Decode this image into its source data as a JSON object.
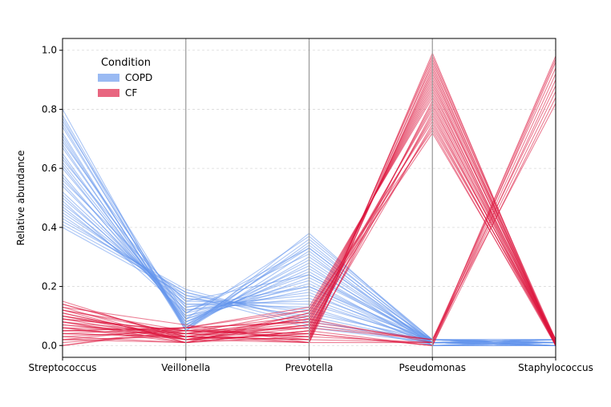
{
  "chart_data": {
    "type": "parallel_coordinates",
    "axes": [
      "Streptococcus",
      "Veillonella",
      "Prevotella",
      "Pseudomonas",
      "Staphylococcus"
    ],
    "ylabel": "Relative abundance",
    "ylim": [
      -0.04,
      1.04
    ],
    "yticks": [
      "0.0",
      "0.2",
      "0.4",
      "0.6",
      "0.8",
      "1.0"
    ],
    "grid": "horizontal dashed",
    "legend": {
      "title": "Condition",
      "position": "top-left",
      "entries": [
        {
          "label": "COPD",
          "color": "#6495ED"
        },
        {
          "label": "CF",
          "color": "#DC143C"
        }
      ]
    },
    "series": [
      {
        "name": "COPD",
        "color": "#6495ED",
        "lines": [
          [
            0.8,
            0.05,
            0.38,
            0.01,
            0.0
          ],
          [
            0.78,
            0.06,
            0.36,
            0.02,
            0.01
          ],
          [
            0.77,
            0.05,
            0.35,
            0.01,
            0.0
          ],
          [
            0.75,
            0.06,
            0.34,
            0.02,
            0.02
          ],
          [
            0.74,
            0.07,
            0.33,
            0.01,
            0.0
          ],
          [
            0.72,
            0.05,
            0.32,
            0.0,
            0.01
          ],
          [
            0.71,
            0.06,
            0.3,
            0.02,
            0.0
          ],
          [
            0.7,
            0.07,
            0.29,
            0.01,
            0.01
          ],
          [
            0.68,
            0.06,
            0.28,
            0.01,
            0.02
          ],
          [
            0.67,
            0.08,
            0.27,
            0.0,
            0.0
          ],
          [
            0.65,
            0.07,
            0.26,
            0.02,
            0.01
          ],
          [
            0.64,
            0.08,
            0.25,
            0.01,
            0.0
          ],
          [
            0.62,
            0.09,
            0.24,
            0.01,
            0.02
          ],
          [
            0.61,
            0.08,
            0.23,
            0.02,
            0.0
          ],
          [
            0.6,
            0.1,
            0.22,
            0.0,
            0.01
          ],
          [
            0.58,
            0.09,
            0.21,
            0.01,
            0.0
          ],
          [
            0.57,
            0.11,
            0.2,
            0.02,
            0.02
          ],
          [
            0.55,
            0.1,
            0.19,
            0.01,
            0.01
          ],
          [
            0.54,
            0.12,
            0.18,
            0.0,
            0.0
          ],
          [
            0.52,
            0.13,
            0.17,
            0.02,
            0.01
          ],
          [
            0.51,
            0.12,
            0.16,
            0.01,
            0.02
          ],
          [
            0.5,
            0.14,
            0.15,
            0.01,
            0.0
          ],
          [
            0.48,
            0.15,
            0.14,
            0.02,
            0.01
          ],
          [
            0.47,
            0.14,
            0.13,
            0.0,
            0.0
          ],
          [
            0.46,
            0.16,
            0.12,
            0.01,
            0.02
          ],
          [
            0.45,
            0.17,
            0.11,
            0.02,
            0.01
          ],
          [
            0.44,
            0.16,
            0.1,
            0.01,
            0.0
          ],
          [
            0.43,
            0.18,
            0.09,
            0.0,
            0.01
          ],
          [
            0.42,
            0.19,
            0.08,
            0.02,
            0.02
          ],
          [
            0.41,
            0.18,
            0.07,
            0.01,
            0.0
          ],
          [
            0.4,
            0.17,
            0.06,
            0.01,
            0.01
          ],
          [
            0.76,
            0.09,
            0.37,
            0.02,
            0.0
          ],
          [
            0.69,
            0.11,
            0.31,
            0.0,
            0.02
          ],
          [
            0.63,
            0.13,
            0.2,
            0.01,
            0.01
          ],
          [
            0.56,
            0.15,
            0.24,
            0.02,
            0.0
          ],
          [
            0.49,
            0.11,
            0.33,
            0.01,
            0.02
          ]
        ]
      },
      {
        "name": "CF",
        "color": "#DC143C",
        "lines": [
          [
            0.15,
            0.02,
            0.01,
            0.99,
            0.0
          ],
          [
            0.14,
            0.03,
            0.02,
            0.98,
            0.01
          ],
          [
            0.13,
            0.01,
            0.03,
            0.97,
            0.0
          ],
          [
            0.12,
            0.04,
            0.01,
            0.96,
            0.02
          ],
          [
            0.11,
            0.02,
            0.04,
            0.95,
            0.0
          ],
          [
            0.1,
            0.03,
            0.02,
            0.94,
            0.01
          ],
          [
            0.09,
            0.05,
            0.03,
            0.93,
            0.0
          ],
          [
            0.08,
            0.01,
            0.05,
            0.92,
            0.02
          ],
          [
            0.07,
            0.04,
            0.06,
            0.91,
            0.01
          ],
          [
            0.06,
            0.02,
            0.07,
            0.9,
            0.0
          ],
          [
            0.05,
            0.06,
            0.08,
            0.89,
            0.01
          ],
          [
            0.04,
            0.03,
            0.09,
            0.88,
            0.02
          ],
          [
            0.03,
            0.05,
            0.1,
            0.87,
            0.0
          ],
          [
            0.02,
            0.01,
            0.11,
            0.86,
            0.01
          ],
          [
            0.01,
            0.04,
            0.12,
            0.85,
            0.0
          ],
          [
            0.0,
            0.06,
            0.13,
            0.84,
            0.02
          ],
          [
            0.13,
            0.07,
            0.01,
            0.83,
            0.01
          ],
          [
            0.11,
            0.02,
            0.04,
            0.82,
            0.0
          ],
          [
            0.09,
            0.05,
            0.06,
            0.81,
            0.02
          ],
          [
            0.07,
            0.03,
            0.08,
            0.8,
            0.01
          ],
          [
            0.05,
            0.06,
            0.02,
            0.79,
            0.0
          ],
          [
            0.03,
            0.01,
            0.05,
            0.78,
            0.01
          ],
          [
            0.1,
            0.04,
            0.09,
            0.77,
            0.02
          ],
          [
            0.08,
            0.02,
            0.11,
            0.76,
            0.0
          ],
          [
            0.06,
            0.05,
            0.03,
            0.75,
            0.01
          ],
          [
            0.04,
            0.03,
            0.07,
            0.74,
            0.02
          ],
          [
            0.02,
            0.06,
            0.12,
            0.73,
            0.0
          ],
          [
            0.12,
            0.01,
            0.1,
            0.72,
            0.01
          ],
          [
            0.14,
            0.03,
            0.02,
            0.01,
            0.98
          ],
          [
            0.12,
            0.05,
            0.04,
            0.0,
            0.96
          ],
          [
            0.1,
            0.02,
            0.06,
            0.02,
            0.94
          ],
          [
            0.08,
            0.04,
            0.03,
            0.01,
            0.92
          ],
          [
            0.06,
            0.01,
            0.05,
            0.0,
            0.9
          ],
          [
            0.04,
            0.06,
            0.08,
            0.02,
            0.88
          ],
          [
            0.02,
            0.03,
            0.01,
            0.01,
            0.86
          ],
          [
            0.0,
            0.05,
            0.04,
            0.0,
            0.84
          ],
          [
            0.09,
            0.02,
            0.07,
            0.02,
            0.82
          ],
          [
            0.05,
            0.04,
            0.09,
            0.01,
            0.97
          ]
        ]
      }
    ]
  }
}
